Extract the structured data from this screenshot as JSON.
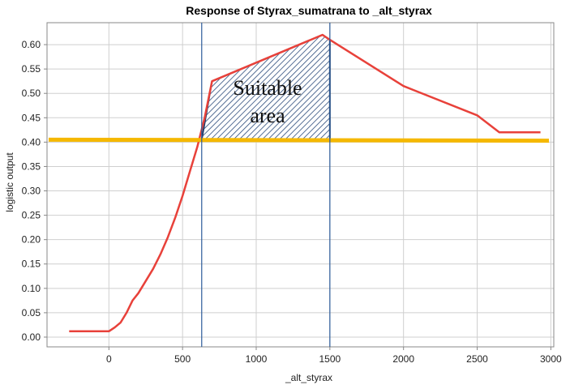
{
  "chart_data": {
    "type": "line",
    "title": "Response of Styrax_sumatrana to _alt_styrax",
    "xlabel": "_alt_styrax",
    "ylabel": "logistic output",
    "xlim": [
      -420,
      3020
    ],
    "ylim": [
      -0.02,
      0.645
    ],
    "x_ticks": [
      0,
      500,
      1000,
      1500,
      2000,
      2500,
      3000
    ],
    "y_ticks": [
      0.0,
      0.05,
      0.1,
      0.15,
      0.2,
      0.25,
      0.3,
      0.35,
      0.4,
      0.45,
      0.5,
      0.55,
      0.6
    ],
    "grid": true,
    "series": [
      {
        "color": "#e8413a",
        "x": [
          -270,
          0,
          40,
          80,
          120,
          160,
          200,
          250,
          300,
          350,
          400,
          450,
          500,
          550,
          600,
          650,
          700,
          1450,
          1500,
          2000,
          2500,
          2650,
          2700,
          2930
        ],
        "y": [
          0.012,
          0.012,
          0.02,
          0.03,
          0.05,
          0.075,
          0.09,
          0.115,
          0.14,
          0.17,
          0.205,
          0.245,
          0.29,
          0.34,
          0.39,
          0.45,
          0.525,
          0.62,
          0.61,
          0.515,
          0.455,
          0.42,
          0.42,
          0.42
        ]
      }
    ],
    "threshold": {
      "y": 0.405,
      "color": "#f5b800"
    },
    "vertical_lines": {
      "x": [
        630,
        1500
      ],
      "color": "#2c5b9a"
    },
    "suitable_area": {
      "label_line1": "Suitable",
      "label_line2": "area",
      "fill_color": "#2a4a7a",
      "polygon_x": [
        630,
        700,
        1450,
        1500,
        1500
      ],
      "polygon_y": [
        0.405,
        0.525,
        0.62,
        0.61,
        0.405
      ]
    }
  }
}
